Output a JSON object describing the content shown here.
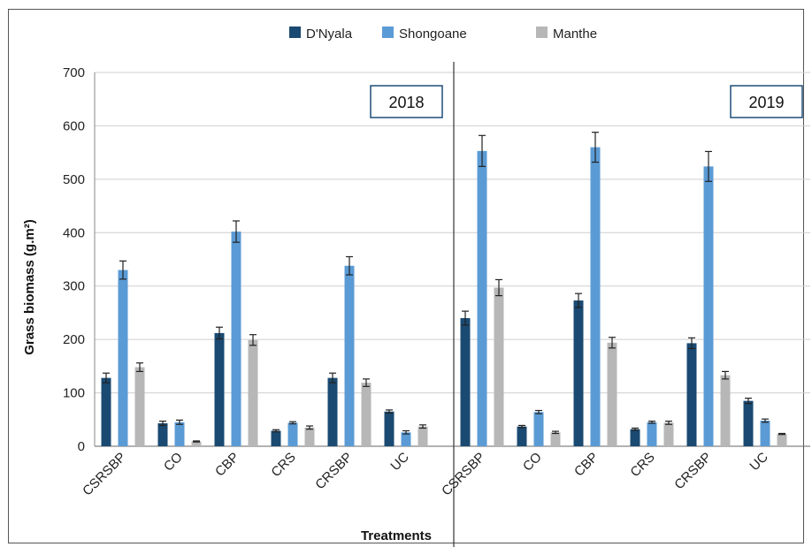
{
  "chart_data": {
    "type": "bar",
    "xlabel": "Treatments",
    "ylabel": "Grass biomass (g.m²)",
    "ylim": [
      0,
      700
    ],
    "yticks": [
      0,
      100,
      200,
      300,
      400,
      500,
      600,
      700
    ],
    "grid": true,
    "legend_position": "top-center",
    "colors": {
      "D'Nyala": "#1a4a72",
      "Shongoane": "#5b9bd5",
      "Manthe": "#b7b7b7"
    },
    "panels": [
      {
        "year": "2018",
        "categories": [
          "CSRSBP",
          "CO",
          "CBP",
          "CRS",
          "CRSBP",
          "UC"
        ],
        "series": [
          {
            "name": "D'Nyala",
            "values": [
              128,
              43,
              212,
              29,
              128,
              65
            ],
            "errors": [
              9,
              4,
              11,
              2,
              9,
              3
            ]
          },
          {
            "name": "Shongoane",
            "values": [
              330,
              45,
              402,
              44,
              338,
              26
            ],
            "errors": [
              17,
              4,
              20,
              2,
              17,
              3
            ]
          },
          {
            "name": "Manthe",
            "values": [
              148,
              9,
              199,
              35,
              119,
              37
            ],
            "errors": [
              8,
              1,
              10,
              3,
              7,
              3
            ]
          }
        ]
      },
      {
        "year": "2019",
        "categories": [
          "CSRSBP",
          "CO",
          "CBP",
          "CRS",
          "CRSBP",
          "UC"
        ],
        "series": [
          {
            "name": "D'Nyala",
            "values": [
              240,
              37,
              273,
              32,
              193,
              85
            ],
            "errors": [
              13,
              2,
              13,
              2,
              10,
              5
            ]
          },
          {
            "name": "Shongoane",
            "values": [
              553,
              64,
              560,
              45,
              524,
              48
            ],
            "errors": [
              29,
              3,
              28,
              2,
              28,
              3
            ]
          },
          {
            "name": "Manthe",
            "values": [
              297,
              26,
              194,
              44,
              133,
              23
            ],
            "errors": [
              15,
              2,
              10,
              3,
              7,
              1
            ]
          }
        ]
      }
    ]
  }
}
